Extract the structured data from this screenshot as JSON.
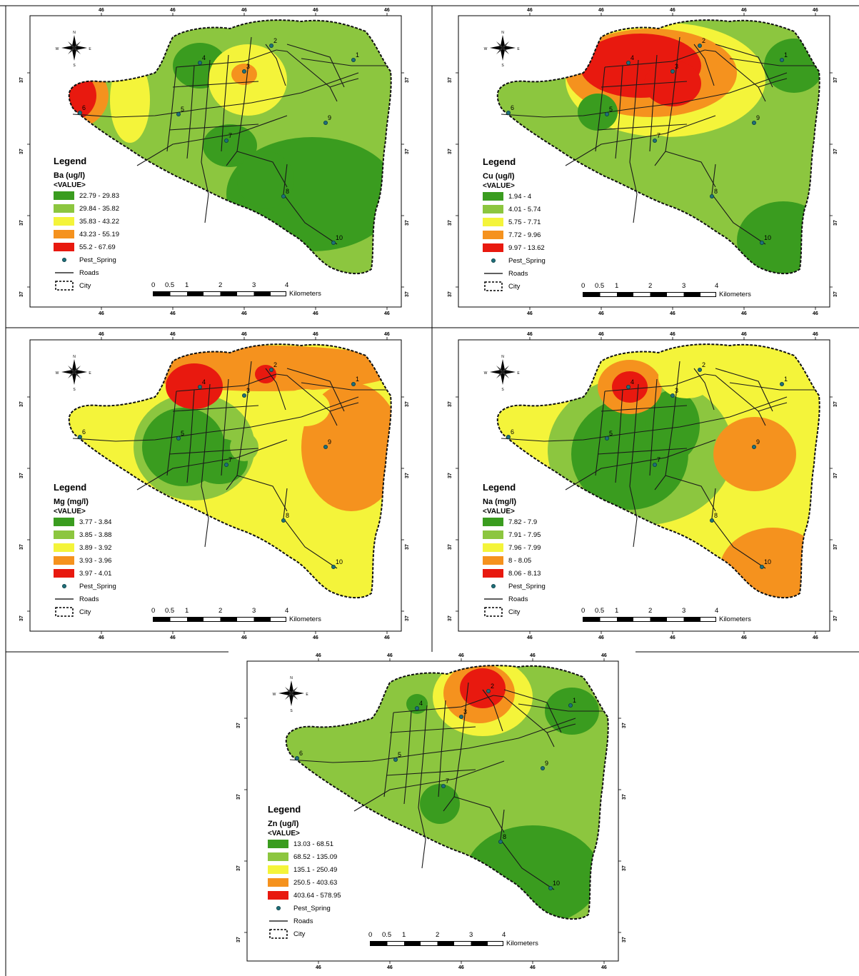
{
  "maps": [
    {
      "legend_title": "Legend",
      "variable": "Ba (ug/l)",
      "value_header": "<VALUE>",
      "classes": [
        {
          "range": "22.79 - 29.83",
          "color": "#3a9c1f"
        },
        {
          "range": "29.84 - 35.82",
          "color": "#8cc63f"
        },
        {
          "range": "35.83 - 43.22",
          "color": "#f4f43a"
        },
        {
          "range": "43.23 - 55.19",
          "color": "#f5921e"
        },
        {
          "range": "55.2 - 67.69",
          "color": "#e8190f"
        }
      ]
    },
    {
      "legend_title": "Legend",
      "variable": "Cu (ug/l)",
      "value_header": "<VALUE>",
      "classes": [
        {
          "range": "1.94 - 4",
          "color": "#3a9c1f"
        },
        {
          "range": "4.01 - 5.74",
          "color": "#8cc63f"
        },
        {
          "range": "5.75 - 7.71",
          "color": "#f4f43a"
        },
        {
          "range": "7.72 - 9.96",
          "color": "#f5921e"
        },
        {
          "range": "9.97 - 13.62",
          "color": "#e8190f"
        }
      ]
    },
    {
      "legend_title": "Legend",
      "variable": "Mg (mg/l)",
      "value_header": "<VALUE>",
      "classes": [
        {
          "range": "3.77 - 3.84",
          "color": "#3a9c1f"
        },
        {
          "range": "3.85 - 3.88",
          "color": "#8cc63f"
        },
        {
          "range": "3.89 - 3.92",
          "color": "#f4f43a"
        },
        {
          "range": "3.93 - 3.96",
          "color": "#f5921e"
        },
        {
          "range": "3.97 - 4.01",
          "color": "#e8190f"
        }
      ]
    },
    {
      "legend_title": "Legend",
      "variable": "Na (mg/l)",
      "value_header": "<VALUE>",
      "classes": [
        {
          "range": "7.82 - 7.9",
          "color": "#3a9c1f"
        },
        {
          "range": "7.91 - 7.95",
          "color": "#8cc63f"
        },
        {
          "range": "7.96 - 7.99",
          "color": "#f4f43a"
        },
        {
          "range": "8 - 8.05",
          "color": "#f5921e"
        },
        {
          "range": "8.06 - 8.13",
          "color": "#e8190f"
        }
      ]
    },
    {
      "legend_title": "Legend",
      "variable": "Zn (ug/l)",
      "value_header": "<VALUE>",
      "classes": [
        {
          "range": "13.03 - 68.51",
          "color": "#3a9c1f"
        },
        {
          "range": "68.52 - 135.09",
          "color": "#8cc63f"
        },
        {
          "range": "135.1 - 250.49",
          "color": "#f4f43a"
        },
        {
          "range": "250.5 - 403.63",
          "color": "#f5921e"
        },
        {
          "range": "403.64 - 578.95",
          "color": "#e8190f"
        }
      ]
    }
  ],
  "symbols": {
    "spring": "Pest_Spring",
    "roads": "Roads",
    "city": "City"
  },
  "scale_bar": {
    "ticks": [
      "0",
      "0.5",
      "1",
      "2",
      "3",
      "4"
    ],
    "units": "Kilometers"
  },
  "graticule": {
    "lon_label": "46",
    "lat_label": "37"
  },
  "north_arrow": {
    "n": "N",
    "s": "S",
    "e": "E",
    "w": "W"
  },
  "springs": [
    "1",
    "2",
    "3",
    "4",
    "5",
    "6",
    "7",
    "8",
    "9",
    "10"
  ]
}
